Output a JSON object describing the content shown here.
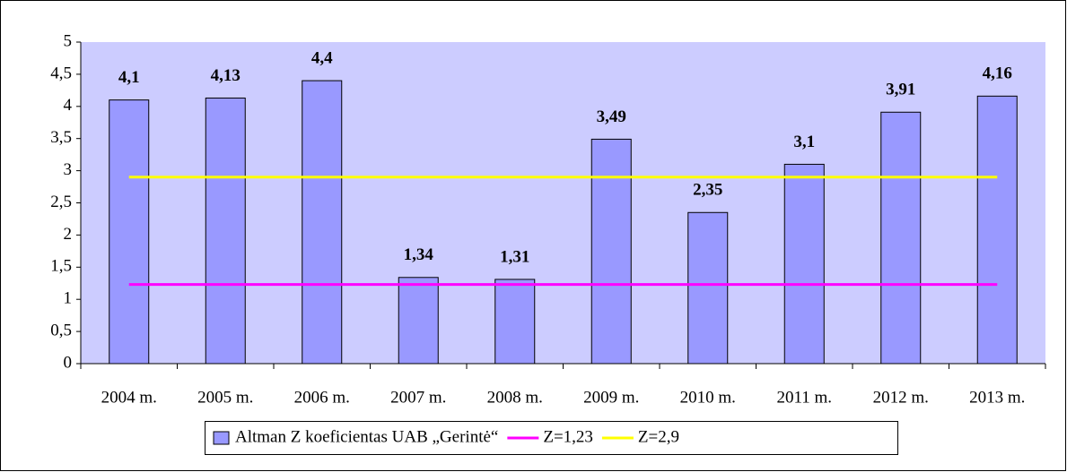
{
  "chart_data": {
    "type": "bar",
    "categories": [
      "2004 m.",
      "2005 m.",
      "2006 m.",
      "2007 m.",
      "2008 m.",
      "2009 m.",
      "2010 m.",
      "2011 m.",
      "2012 m.",
      "2013 m."
    ],
    "series": [
      {
        "name": "Altman Z koeficientas UAB „Gerintė“",
        "type": "bar",
        "color": "#9999ff",
        "values": [
          4.1,
          4.13,
          4.4,
          1.34,
          1.31,
          3.49,
          2.35,
          3.1,
          3.91,
          4.16
        ],
        "value_labels": [
          "4,1",
          "4,13",
          "4,4",
          "1,34",
          "1,31",
          "3,49",
          "2,35",
          "3,1",
          "3,91",
          "4,16"
        ]
      },
      {
        "name": "Z=1,23",
        "type": "line",
        "color": "#ff00ff",
        "values": [
          1.23,
          1.23,
          1.23,
          1.23,
          1.23,
          1.23,
          1.23,
          1.23,
          1.23,
          1.23
        ]
      },
      {
        "name": "Z=2,9",
        "type": "line",
        "color": "#ffff00",
        "values": [
          2.9,
          2.9,
          2.9,
          2.9,
          2.9,
          2.9,
          2.9,
          2.9,
          2.9,
          2.9
        ]
      }
    ],
    "ylim": [
      0,
      5
    ],
    "yticks": [
      0,
      {
        "value": 0.5,
        "label": "0,5"
      },
      1,
      {
        "value": 1.5,
        "label": "1,5"
      },
      2,
      {
        "value": 2.5,
        "label": "2,5"
      },
      3,
      {
        "value": 3.5,
        "label": "3,5"
      },
      4,
      {
        "value": 4.5,
        "label": "4,5"
      },
      5
    ],
    "plot_background": "#ccccff",
    "legend": "bottom"
  }
}
